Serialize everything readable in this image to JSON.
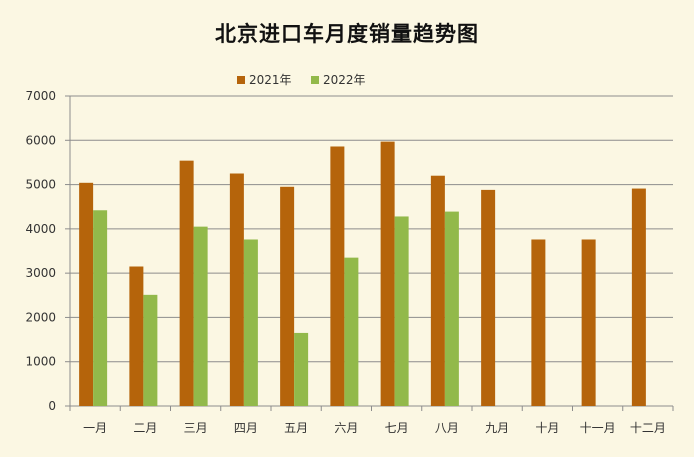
{
  "chart_data": {
    "type": "bar",
    "title": "北京进口车月度销量趋势图",
    "xlabel": "",
    "ylabel": "",
    "categories": [
      "一月",
      "二月",
      "三月",
      "四月",
      "五月",
      "六月",
      "七月",
      "八月",
      "九月",
      "十月",
      "十一月",
      "十二月"
    ],
    "series": [
      {
        "name": "2021年",
        "color": "#b5640b",
        "values": [
          5040,
          3150,
          5540,
          5250,
          4950,
          5860,
          5970,
          5200,
          4880,
          3760,
          3760,
          4910
        ]
      },
      {
        "name": "2022年",
        "color": "#92b94a",
        "values": [
          4420,
          2510,
          4050,
          3760,
          1650,
          3350,
          4280,
          4390,
          null,
          null,
          null,
          null
        ]
      }
    ],
    "ylim": [
      0,
      7000
    ],
    "yticks": [
      "0",
      "1000",
      "2000",
      "3000",
      "4000",
      "5000",
      "6000",
      "7000"
    ],
    "grid": true,
    "legend_position": "top"
  }
}
